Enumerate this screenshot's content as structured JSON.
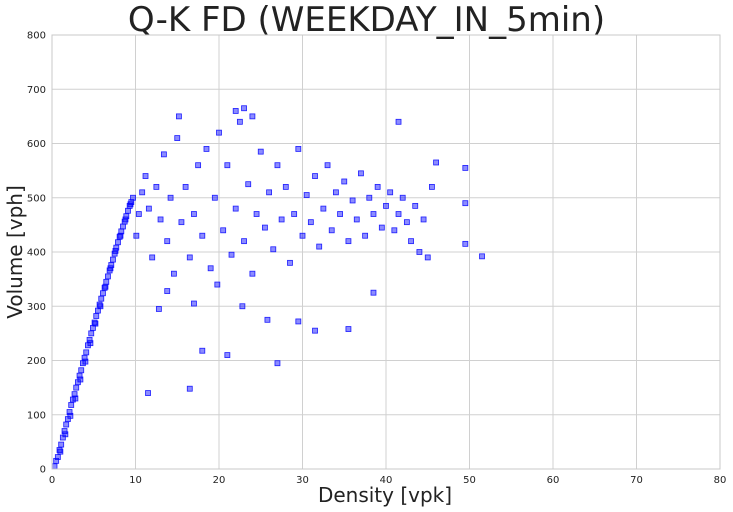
{
  "chart_data": {
    "type": "scatter",
    "title": "Q-K FD (WEEKDAY_IN_5min)",
    "xlabel": "Density [vpk]",
    "ylabel": "Volume [vph]",
    "xlim": [
      0,
      80
    ],
    "ylim": [
      0,
      800
    ],
    "xticks": [
      0,
      10,
      20,
      30,
      40,
      50,
      60,
      70,
      80
    ],
    "yticks": [
      0,
      100,
      200,
      300,
      400,
      500,
      600,
      700,
      800
    ],
    "grid": true,
    "legend": "none",
    "marker": "square",
    "color": "#0000ff",
    "series": [
      {
        "values": [
          [
            0.3,
            5
          ],
          [
            0.5,
            15
          ],
          [
            0.7,
            22
          ],
          [
            0.9,
            35
          ],
          [
            1.1,
            45
          ],
          [
            1.3,
            58
          ],
          [
            1.5,
            70
          ],
          [
            1.7,
            82
          ],
          [
            1.9,
            92
          ],
          [
            2.1,
            105
          ],
          [
            2.3,
            118
          ],
          [
            2.5,
            128
          ],
          [
            2.7,
            138
          ],
          [
            2.9,
            150
          ],
          [
            3.1,
            160
          ],
          [
            3.3,
            172
          ],
          [
            3.5,
            182
          ],
          [
            3.7,
            195
          ],
          [
            3.9,
            205
          ],
          [
            4.1,
            215
          ],
          [
            4.3,
            228
          ],
          [
            4.5,
            238
          ],
          [
            4.7,
            250
          ],
          [
            4.9,
            260
          ],
          [
            5.1,
            270
          ],
          [
            5.3,
            282
          ],
          [
            5.5,
            292
          ],
          [
            5.7,
            303
          ],
          [
            5.9,
            314
          ],
          [
            6.1,
            324
          ],
          [
            6.3,
            334
          ],
          [
            6.5,
            345
          ],
          [
            6.7,
            355
          ],
          [
            6.9,
            366
          ],
          [
            7.1,
            376
          ],
          [
            7.3,
            386
          ],
          [
            7.5,
            397
          ],
          [
            7.7,
            408
          ],
          [
            7.9,
            418
          ],
          [
            8.1,
            428
          ],
          [
            8.3,
            438
          ],
          [
            8.5,
            447
          ],
          [
            8.7,
            456
          ],
          [
            8.9,
            466
          ],
          [
            9.1,
            476
          ],
          [
            9.3,
            485
          ],
          [
            9.5,
            492
          ],
          [
            9.7,
            500
          ],
          [
            1.0,
            32
          ],
          [
            1.6,
            64
          ],
          [
            2.2,
            98
          ],
          [
            2.8,
            130
          ],
          [
            3.4,
            165
          ],
          [
            4.0,
            198
          ],
          [
            4.6,
            232
          ],
          [
            5.2,
            268
          ],
          [
            5.8,
            300
          ],
          [
            6.4,
            336
          ],
          [
            7.0,
            370
          ],
          [
            7.6,
            402
          ],
          [
            8.2,
            430
          ],
          [
            8.8,
            460
          ],
          [
            9.4,
            488
          ],
          [
            10.1,
            430
          ],
          [
            10.4,
            470
          ],
          [
            10.8,
            510
          ],
          [
            11.2,
            540
          ],
          [
            11.6,
            480
          ],
          [
            12.0,
            390
          ],
          [
            12.5,
            520
          ],
          [
            13.0,
            460
          ],
          [
            13.4,
            580
          ],
          [
            13.8,
            420
          ],
          [
            14.2,
            500
          ],
          [
            14.6,
            360
          ],
          [
            15.0,
            610
          ],
          [
            15.5,
            455
          ],
          [
            16.0,
            520
          ],
          [
            16.5,
            390
          ],
          [
            17.0,
            470
          ],
          [
            17.5,
            560
          ],
          [
            18.0,
            430
          ],
          [
            18.5,
            590
          ],
          [
            19.0,
            370
          ],
          [
            19.5,
            500
          ],
          [
            20.0,
            620
          ],
          [
            20.5,
            440
          ],
          [
            21.0,
            560
          ],
          [
            21.5,
            395
          ],
          [
            22.0,
            480
          ],
          [
            22.5,
            640
          ],
          [
            23.0,
            420
          ],
          [
            23.5,
            525
          ],
          [
            24.0,
            360
          ],
          [
            24.5,
            470
          ],
          [
            25.0,
            585
          ],
          [
            25.5,
            445
          ],
          [
            26.0,
            510
          ],
          [
            26.5,
            405
          ],
          [
            27.0,
            560
          ],
          [
            27.5,
            460
          ],
          [
            28.0,
            520
          ],
          [
            28.5,
            380
          ],
          [
            29.0,
            470
          ],
          [
            29.5,
            590
          ],
          [
            30.0,
            430
          ],
          [
            30.5,
            505
          ],
          [
            31.0,
            455
          ],
          [
            31.5,
            540
          ],
          [
            32.0,
            410
          ],
          [
            32.5,
            480
          ],
          [
            33.0,
            560
          ],
          [
            33.5,
            440
          ],
          [
            34.0,
            510
          ],
          [
            34.5,
            470
          ],
          [
            35.0,
            530
          ],
          [
            35.5,
            420
          ],
          [
            36.0,
            495
          ],
          [
            36.5,
            460
          ],
          [
            37.0,
            545
          ],
          [
            37.5,
            430
          ],
          [
            38.0,
            500
          ],
          [
            38.5,
            470
          ],
          [
            39.0,
            520
          ],
          [
            39.5,
            445
          ],
          [
            40.0,
            485
          ],
          [
            40.5,
            510
          ],
          [
            41.0,
            440
          ],
          [
            41.5,
            470
          ],
          [
            42.0,
            500
          ],
          [
            42.5,
            455
          ],
          [
            43.0,
            420
          ],
          [
            43.5,
            485
          ],
          [
            44.0,
            400
          ],
          [
            44.5,
            460
          ],
          [
            45.0,
            390
          ],
          [
            45.5,
            520
          ],
          [
            46.0,
            565
          ],
          [
            49.5,
            555
          ],
          [
            49.5,
            490
          ],
          [
            49.5,
            415
          ],
          [
            51.5,
            392
          ],
          [
            11.5,
            140
          ],
          [
            16.5,
            148
          ],
          [
            18.0,
            218
          ],
          [
            21.0,
            210
          ],
          [
            27.0,
            195
          ],
          [
            31.5,
            255
          ],
          [
            35.5,
            258
          ],
          [
            38.5,
            325
          ],
          [
            15.2,
            650
          ],
          [
            22.0,
            660
          ],
          [
            23.0,
            665
          ],
          [
            24.0,
            650
          ],
          [
            41.5,
            640
          ],
          [
            12.8,
            295
          ],
          [
            13.8,
            328
          ],
          [
            17.0,
            305
          ],
          [
            19.8,
            340
          ],
          [
            22.8,
            300
          ],
          [
            25.8,
            275
          ],
          [
            29.5,
            272
          ]
        ]
      }
    ]
  }
}
